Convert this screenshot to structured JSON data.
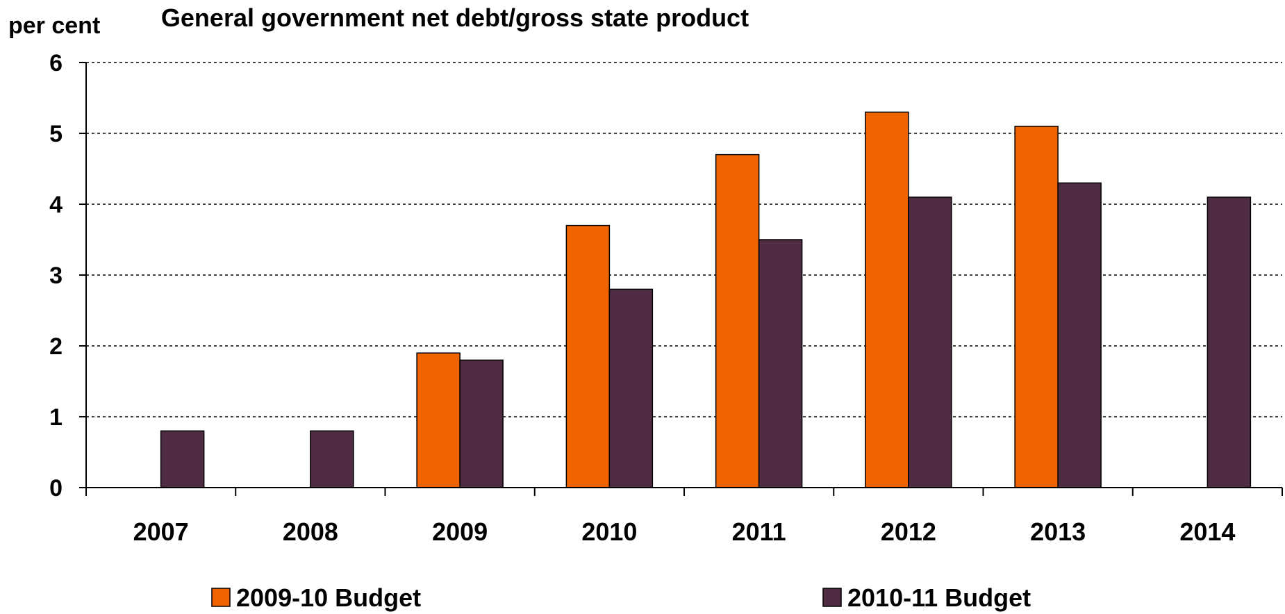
{
  "chart_data": {
    "type": "bar",
    "title": "General government net debt/gross state product",
    "ylabel": "per cent",
    "xlabel": "",
    "categories": [
      "2007",
      "2008",
      "2009",
      "2010",
      "2011",
      "2012",
      "2013",
      "2014"
    ],
    "series": [
      {
        "name": "2009-10 Budget",
        "color": "#f06400",
        "values": [
          null,
          null,
          1.9,
          3.7,
          4.7,
          5.3,
          5.1,
          null
        ]
      },
      {
        "name": "2010-11 Budget",
        "color": "#4f2c43",
        "values": [
          0.8,
          0.8,
          1.8,
          2.8,
          3.5,
          4.1,
          4.3,
          4.1
        ]
      }
    ],
    "ylim": [
      0,
      6
    ],
    "yticks": [
      "0",
      "1",
      "2",
      "3",
      "4",
      "5",
      "6"
    ],
    "grid": "horizontal dashed",
    "legend_position": "bottom"
  }
}
